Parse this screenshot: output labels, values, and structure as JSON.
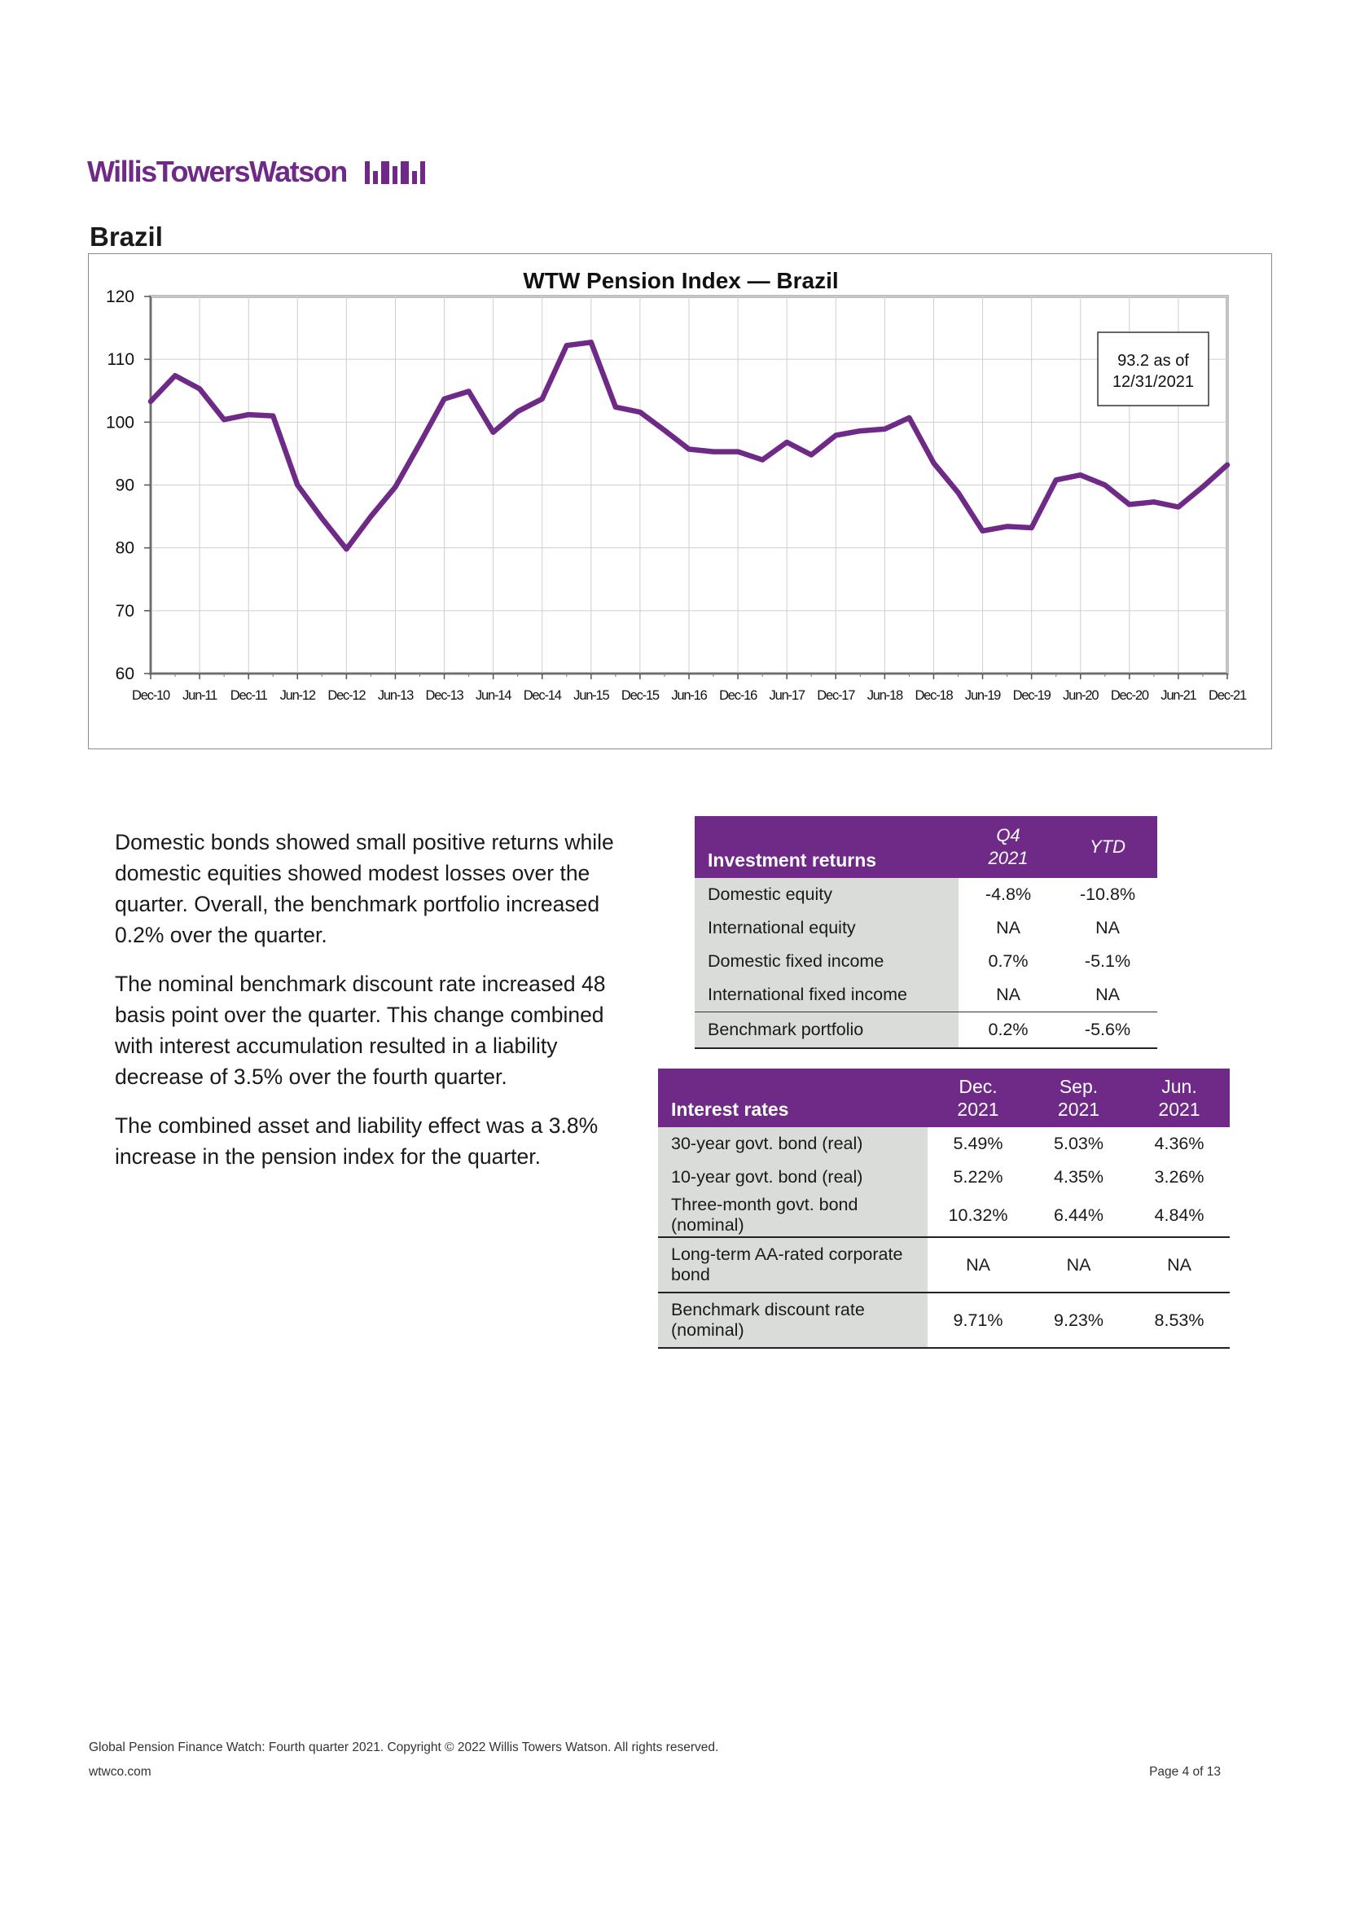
{
  "header": {
    "logo_text": "WillisTowersWatson"
  },
  "section_title": "Brazil",
  "chart_data": {
    "type": "line",
    "title": "WTW Pension Index — Brazil",
    "ylim": [
      60,
      120
    ],
    "yticks": [
      60,
      70,
      80,
      90,
      100,
      110,
      120
    ],
    "x_tick_labels": [
      "Dec-10",
      "Jun-11",
      "Dec-11",
      "Jun-12",
      "Dec-12",
      "Jun-13",
      "Dec-13",
      "Jun-14",
      "Dec-14",
      "Jun-15",
      "Dec-15",
      "Jun-16",
      "Dec-16",
      "Jun-17",
      "Dec-17",
      "Jun-18",
      "Dec-18",
      "Jun-19",
      "Dec-19",
      "Jun-20",
      "Dec-20",
      "Jun-21",
      "Dec-21"
    ],
    "grid": true,
    "series_color": "#6e2a86",
    "values": [
      103.3,
      107.4,
      105.3,
      100.4,
      101.2,
      101.0,
      90.0,
      84.7,
      79.8,
      85.0,
      89.7,
      96.6,
      103.7,
      104.9,
      98.4,
      101.7,
      103.7,
      112.2,
      112.7,
      102.4,
      101.6,
      98.7,
      95.7,
      95.3,
      95.3,
      94.0,
      96.8,
      94.8,
      97.9,
      98.6,
      98.9,
      100.7,
      93.5,
      88.8,
      82.7,
      83.4,
      83.2,
      90.8,
      91.6,
      90.0,
      86.9,
      87.3,
      86.5,
      89.7,
      93.2
    ],
    "annotation": {
      "line1": "93.2 as of",
      "line2": "12/31/2021"
    }
  },
  "paragraphs": [
    "Domestic bonds showed small positive returns while domestic equities showed modest losses over the quarter. Overall, the benchmark portfolio increased 0.2% over the quarter.",
    "The nominal benchmark discount rate increased 48 basis point over the quarter. This change combined with interest accumulation resulted in a liability decrease of 3.5% over the fourth quarter.",
    "The combined asset and liability effect was a 3.8% increase in the pension index for the quarter."
  ],
  "investment_returns": {
    "title": "Investment returns",
    "col1_line1": "Q4",
    "col1_line2": "2021",
    "col2": "YTD",
    "rows": [
      {
        "label": "Domestic equity",
        "q4": "-4.8%",
        "ytd": "-10.8%"
      },
      {
        "label": "International equity",
        "q4": "NA",
        "ytd": "NA"
      },
      {
        "label": "Domestic fixed income",
        "q4": "0.7%",
        "ytd": "-5.1%"
      },
      {
        "label": "International fixed income",
        "q4": "NA",
        "ytd": "NA"
      },
      {
        "label": "Benchmark portfolio",
        "q4": "0.2%",
        "ytd": "-5.6%"
      }
    ]
  },
  "interest_rates": {
    "title": "Interest rates",
    "cols": [
      {
        "line1": "Dec.",
        "line2": "2021"
      },
      {
        "line1": "Sep.",
        "line2": "2021"
      },
      {
        "line1": "Jun.",
        "line2": "2021"
      }
    ],
    "rows": [
      {
        "label_line1": "30-year govt. bond (real)",
        "label_line2": "",
        "v": [
          "5.49%",
          "5.03%",
          "4.36%"
        ]
      },
      {
        "label_line1": "10-year govt. bond (real)",
        "label_line2": "",
        "v": [
          "5.22%",
          "4.35%",
          "3.26%"
        ]
      },
      {
        "label_line1": "Three-month govt. bond",
        "label_line2": "(nominal)",
        "v": [
          "10.32%",
          "6.44%",
          "4.84%"
        ]
      },
      {
        "label_line1": "Long-term AA-rated corporate",
        "label_line2": "bond",
        "v": [
          "NA",
          "NA",
          "NA"
        ]
      },
      {
        "label_line1": "Benchmark discount rate",
        "label_line2": "(nominal)",
        "v": [
          "9.71%",
          "9.23%",
          "8.53%"
        ]
      }
    ]
  },
  "footer": {
    "line1": "Global Pension Finance Watch: Fourth quarter 2021.  Copyright © 2022 Willis Towers Watson. All rights reserved.",
    "site": "wtwco.com",
    "page": "Page 4 of 13"
  }
}
